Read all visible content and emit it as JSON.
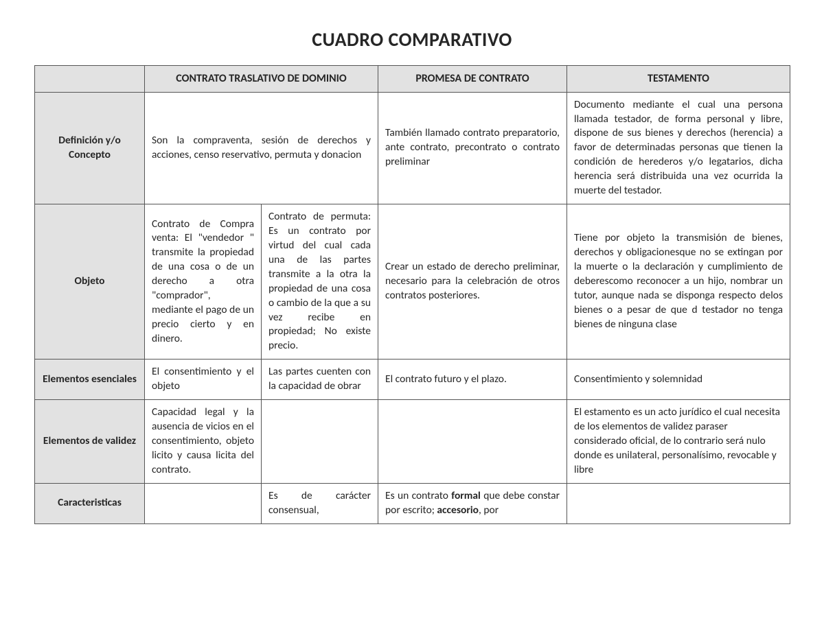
{
  "title": "CUADRO COMPARATIVO",
  "headers": {
    "col1": "CONTRATO TRASLATIVO DE DOMINIO",
    "col2": "PROMESA DE CONTRATO",
    "col3": "TESTAMENTO"
  },
  "rows": {
    "definicion": {
      "label": "Definición y/o Concepto",
      "ctd": "Son la compraventa, sesión de derechos y acciones, censo reservativo, permuta y donacion",
      "promesa": "También llamado contrato preparatorio, ante contrato, precontrato o contrato preliminar",
      "testamento": "Documento mediante el cual una persona llamada testador, de forma personal y libre, dispone de sus bienes y derechos (herencia) a favor de determinadas personas que tienen la condición de herederos y/o legatarios, dicha herencia será distribuida una vez ocurrida la muerte del testador."
    },
    "objeto": {
      "label": "Objeto",
      "ctd_a": "Contrato de Compra venta: El \"vendedor \" transmite la propiedad de una cosa o de un derecho a otra \"comprador\", mediante el pago de un precio cierto y en dinero.",
      "ctd_b": "Contrato de permuta: Es un contrato por virtud del cual cada una de las partes transmite a la otra la propiedad de una cosa o cambio de la que a su vez recibe en propiedad; No existe precio.",
      "promesa": "Crear un estado de derecho preliminar, necesario para la celebración de otros contratos posteriores.",
      "testamento": "Tiene por objeto la transmisión de bienes, derechos y obligacionesque no se extingan por la muerte o la declaración y cumplimiento de deberescomo reconocer a un hijo, nombrar un tutor, aunque nada se disponga respecto delos bienes o a pesar de que d testador no tenga bienes de ninguna clase"
    },
    "esenciales": {
      "label": "Elementos esenciales",
      "ctd_a": "El consentimiento y el objeto",
      "ctd_b": "Las partes cuenten con la capacidad de obrar",
      "promesa": "El contrato futuro y el plazo.",
      "testamento": "Consentimiento y solemnidad"
    },
    "validez": {
      "label": "Elementos de validez",
      "ctd_a": "Capacidad legal y la ausencia de vicios en el consentimiento, objeto licito y causa licita del contrato.",
      "ctd_b": "",
      "promesa": "",
      "testamento": "El estamento es un acto jurídico el cual necesita de los elementos de validez paraser considerado oficial, de lo contrario será nulo donde es unilateral, personalísimo, revocable y libre"
    },
    "caracteristicas": {
      "label": "Caracteristicas",
      "ctd_a": "",
      "ctd_b": "Es de carácter consensual,",
      "promesa_pre": "Es un contrato ",
      "promesa_b1": "formal",
      "promesa_mid": " que debe constar por escrito; ",
      "promesa_b2": "accesorio",
      "promesa_post": ", por",
      "testamento": ""
    }
  }
}
